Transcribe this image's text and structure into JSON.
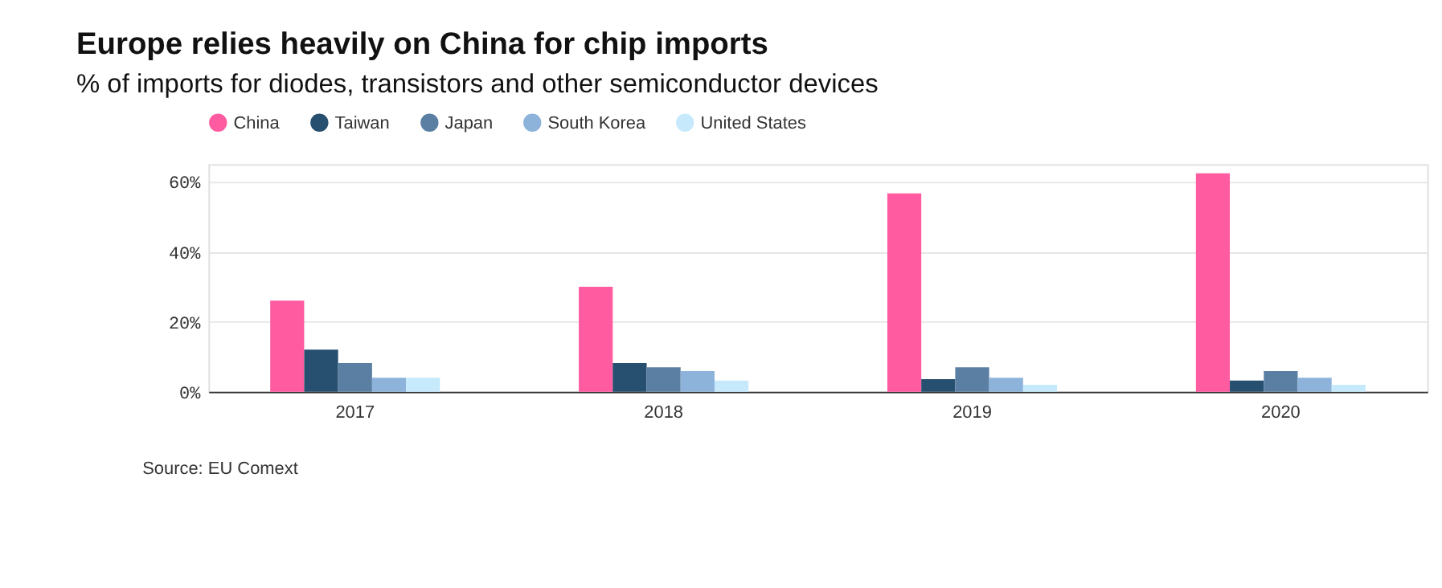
{
  "chart_data": {
    "type": "bar",
    "title": "Europe relies heavily on China for chip imports",
    "subtitle": "% of imports for diodes, transistors and other semiconductor devices",
    "categories": [
      "2017",
      "2018",
      "2019",
      "2020"
    ],
    "series": [
      {
        "name": "China",
        "color": "#ff5ba0",
        "values": [
          26,
          30,
          56.7,
          62.4
        ]
      },
      {
        "name": "Taiwan",
        "color": "#264f70",
        "values": [
          12,
          8.2,
          3.6,
          3.2
        ]
      },
      {
        "name": "Japan",
        "color": "#5a7fa3",
        "values": [
          8.2,
          7,
          7,
          5.9
        ]
      },
      {
        "name": "South Korea",
        "color": "#8db3db",
        "values": [
          4,
          5.9,
          4,
          4
        ]
      },
      {
        "name": "United States",
        "color": "#c6eafc",
        "values": [
          4,
          3.2,
          2,
          2
        ]
      }
    ],
    "ylim": [
      0,
      65
    ],
    "yticks": [
      {
        "value": 0,
        "label": "0%"
      },
      {
        "value": 20,
        "label": "20%"
      },
      {
        "value": 40,
        "label": "40%"
      },
      {
        "value": 60,
        "label": "60%"
      }
    ],
    "grid": "y",
    "legend": "top",
    "annotations": [
      "Source: EU Comext"
    ]
  }
}
